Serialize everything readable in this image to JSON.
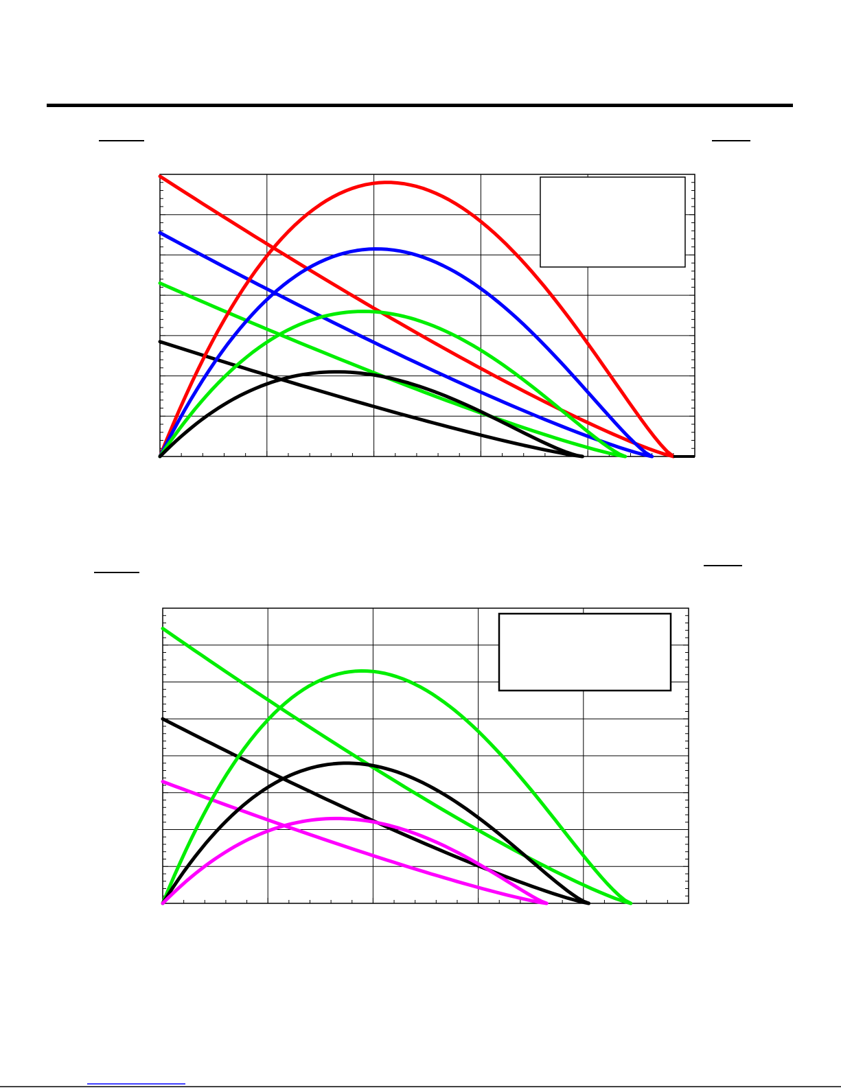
{
  "colors": {
    "red": "#ff0000",
    "blue": "#0000ff",
    "green": "#00ee00",
    "black": "#000000",
    "magenta": "#ff00ff",
    "link_underline": "#0000ff"
  },
  "chart_data": [
    {
      "type": "line",
      "title": "",
      "xlabel": "",
      "ylabel": "",
      "grid": true,
      "legend": "top-right",
      "xlim": [
        0,
        10
      ],
      "ylim": [
        0,
        7
      ],
      "series": [
        {
          "color": "red",
          "kind": "falling",
          "values": [
            [
              0,
              6.95
            ],
            [
              9.6,
              0
            ]
          ]
        },
        {
          "color": "blue",
          "kind": "falling",
          "values": [
            [
              0,
              5.55
            ],
            [
              9.2,
              0
            ]
          ]
        },
        {
          "color": "green",
          "kind": "falling",
          "values": [
            [
              0,
              4.3
            ],
            [
              8.7,
              0
            ]
          ]
        },
        {
          "color": "black",
          "kind": "falling",
          "values": [
            [
              0,
              2.85
            ],
            [
              7.9,
              0
            ]
          ]
        },
        {
          "color": "red",
          "kind": "arc",
          "peak": [
            4.25,
            6.8
          ],
          "zero": 9.6
        },
        {
          "color": "blue",
          "kind": "arc",
          "peak": [
            4.05,
            5.15
          ],
          "zero": 9.2
        },
        {
          "color": "green",
          "kind": "arc",
          "peak": [
            3.8,
            3.6
          ],
          "zero": 8.7
        },
        {
          "color": "black",
          "kind": "arc",
          "peak": [
            3.3,
            2.1
          ],
          "zero": 7.9
        }
      ]
    },
    {
      "type": "line",
      "title": "",
      "xlabel": "",
      "ylabel": "",
      "grid": true,
      "legend": "top-right",
      "xlim": [
        0,
        10
      ],
      "ylim": [
        0,
        8
      ],
      "series": [
        {
          "color": "green",
          "kind": "falling",
          "values": [
            [
              0,
              7.45
            ],
            [
              8.9,
              0
            ]
          ]
        },
        {
          "color": "black",
          "kind": "falling",
          "values": [
            [
              0,
              5.0
            ],
            [
              8.1,
              0
            ]
          ]
        },
        {
          "color": "magenta",
          "kind": "falling",
          "values": [
            [
              0,
              3.3
            ],
            [
              7.3,
              0
            ]
          ]
        },
        {
          "color": "green",
          "kind": "arc",
          "peak": [
            3.8,
            6.3
          ],
          "zero": 8.9
        },
        {
          "color": "black",
          "kind": "arc",
          "peak": [
            3.5,
            3.8
          ],
          "zero": 8.1
        },
        {
          "color": "magenta",
          "kind": "arc",
          "peak": [
            3.3,
            2.3
          ],
          "zero": 7.3
        }
      ]
    }
  ]
}
